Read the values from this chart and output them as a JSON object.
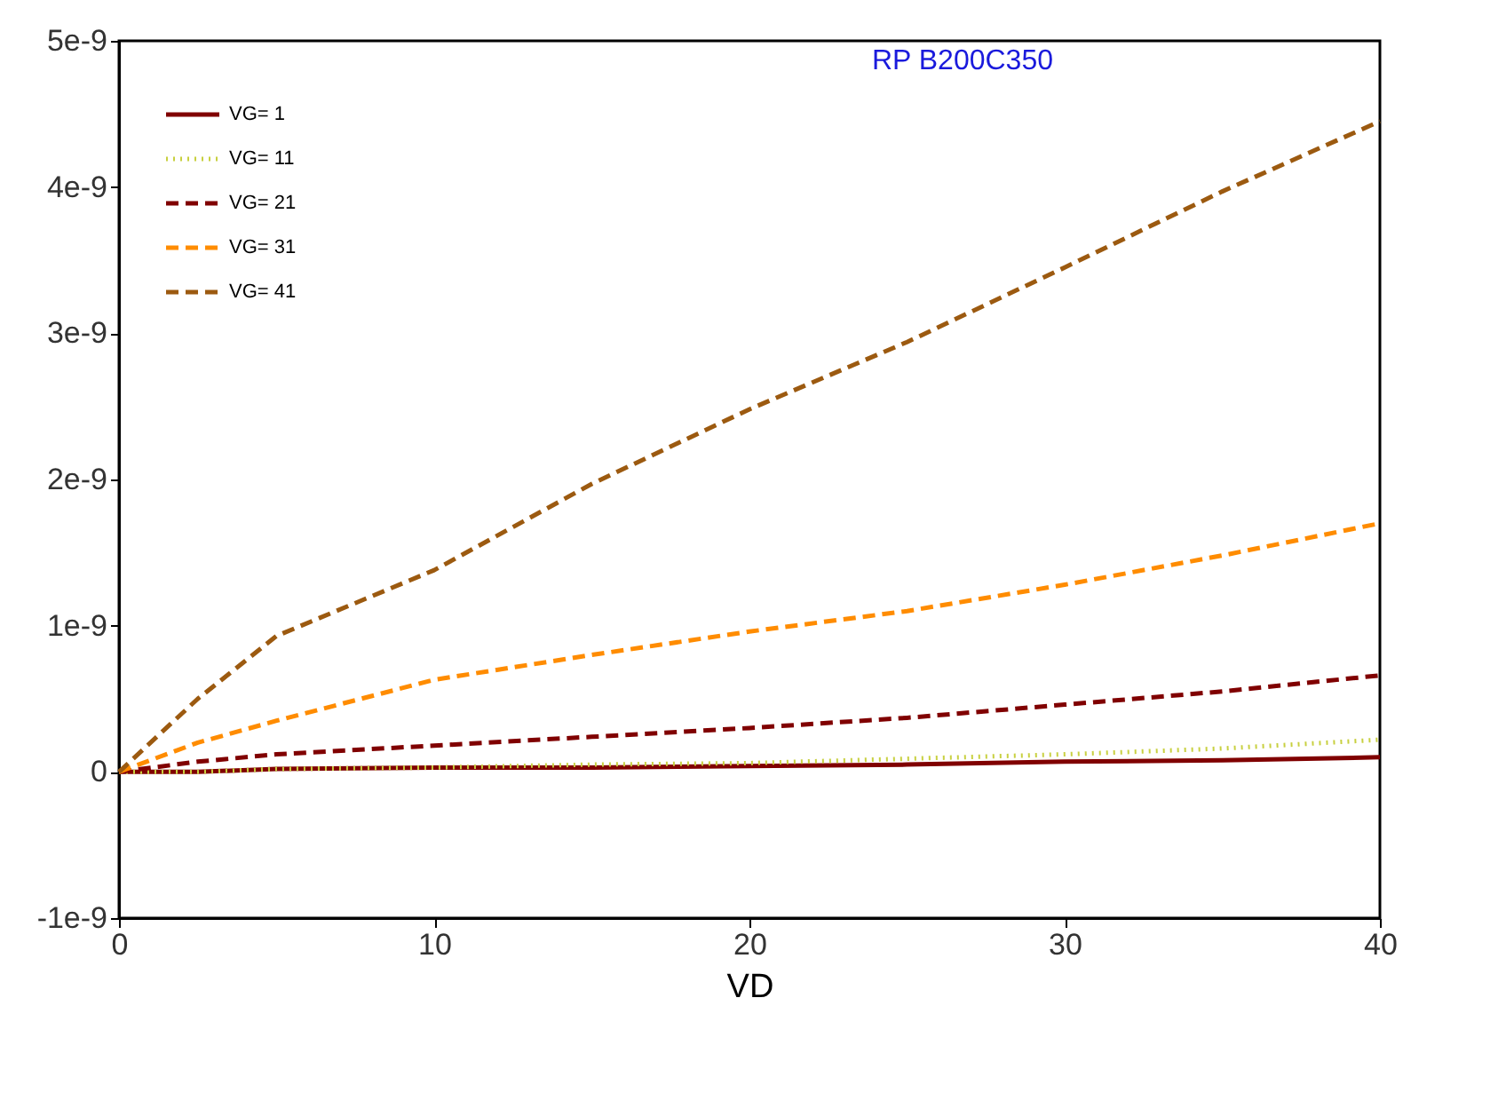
{
  "chart_data": {
    "type": "line",
    "title": "RP B200C350",
    "xlabel": "VD",
    "x": [
      0,
      2.5,
      5,
      10,
      15,
      20,
      25,
      30,
      35,
      40
    ],
    "series": [
      {
        "name": "VG= 1",
        "color": "#800000",
        "line_style": "solid",
        "values": [
          0,
          0,
          2e-11,
          3e-11,
          3e-11,
          4e-11,
          5e-11,
          7e-11,
          8e-11,
          1e-10
        ]
      },
      {
        "name": "VG= 11",
        "color": "#c8d040",
        "line_style": "dotted",
        "values": [
          0,
          0,
          2e-11,
          3e-11,
          5e-11,
          6e-11,
          9e-11,
          1.2e-10,
          1.6e-10,
          2.2e-10
        ]
      },
      {
        "name": "VG= 21",
        "color": "#800000",
        "line_style": "dashed",
        "values": [
          0,
          7e-11,
          1.2e-10,
          1.8e-10,
          2.4e-10,
          3e-10,
          3.7e-10,
          4.6e-10,
          5.5e-10,
          6.6e-10
        ]
      },
      {
        "name": "VG= 31",
        "color": "#ff8c00",
        "line_style": "dashed",
        "values": [
          0,
          2e-10,
          3.5e-10,
          6.3e-10,
          8e-10,
          9.6e-10,
          1.1e-09,
          1.28e-09,
          1.48e-09,
          1.7e-09
        ]
      },
      {
        "name": "VG= 41",
        "color": "#9c5a10",
        "line_style": "dashed",
        "values": [
          0,
          5e-10,
          9.3e-10,
          1.38e-09,
          1.97e-09,
          2.48e-09,
          2.94e-09,
          3.45e-09,
          3.97e-09,
          4.45e-09
        ]
      }
    ],
    "xlim": [
      0,
      40
    ],
    "xticks": [
      0,
      10,
      20,
      30,
      40
    ],
    "ylim": [
      -1e-09,
      5e-09
    ],
    "yticks": [
      {
        "value": -1e-09,
        "label": "-1e-9"
      },
      0,
      {
        "value": 1e-09,
        "label": "1e-9"
      },
      {
        "value": 2e-09,
        "label": "2e-9"
      },
      {
        "value": 3e-09,
        "label": "3e-9"
      },
      {
        "value": 4e-09,
        "label": "4e-9"
      },
      {
        "value": 5e-09,
        "label": "5e-9"
      }
    ],
    "grid": false,
    "legend": "top left",
    "marker": "none"
  }
}
